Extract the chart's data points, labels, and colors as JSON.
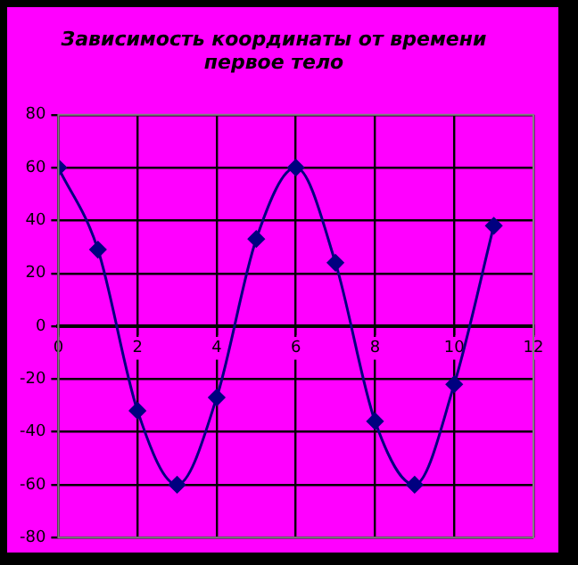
{
  "chart_data": {
    "type": "line",
    "title": [
      "Зависимость координаты от времени",
      "первое тело"
    ],
    "x": [
      0,
      1,
      2,
      3,
      4,
      5,
      6,
      7,
      8,
      9,
      10,
      11
    ],
    "series": [
      {
        "color": "#000080",
        "values": [
          60,
          29,
          -32,
          -60,
          -27,
          33,
          60,
          24,
          -36,
          -60,
          -22,
          38
        ]
      }
    ],
    "xlim": [
      0,
      12
    ],
    "xticks": [
      0,
      2,
      4,
      6,
      8,
      10,
      12
    ],
    "ylim": [
      -80,
      80
    ],
    "yticks": [
      -80,
      -60,
      -40,
      -20,
      0,
      20,
      40,
      60,
      80
    ],
    "grid": true,
    "legend": false,
    "marker": "diamond",
    "line_style": "solid"
  }
}
